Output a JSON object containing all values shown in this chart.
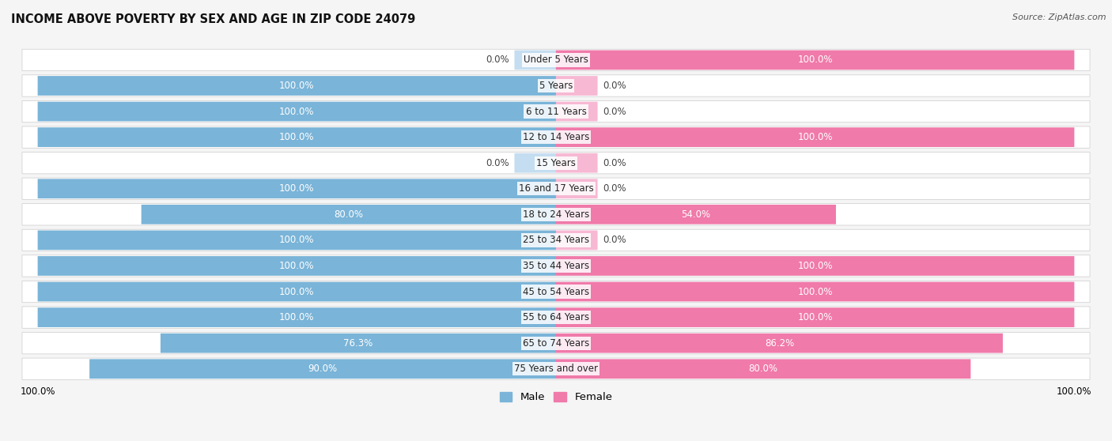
{
  "title": "INCOME ABOVE POVERTY BY SEX AND AGE IN ZIP CODE 24079",
  "source": "Source: ZipAtlas.com",
  "categories": [
    "Under 5 Years",
    "5 Years",
    "6 to 11 Years",
    "12 to 14 Years",
    "15 Years",
    "16 and 17 Years",
    "18 to 24 Years",
    "25 to 34 Years",
    "35 to 44 Years",
    "45 to 54 Years",
    "55 to 64 Years",
    "65 to 74 Years",
    "75 Years and over"
  ],
  "male": [
    0.0,
    100.0,
    100.0,
    100.0,
    0.0,
    100.0,
    80.0,
    100.0,
    100.0,
    100.0,
    100.0,
    76.3,
    90.0
  ],
  "female": [
    100.0,
    0.0,
    0.0,
    100.0,
    0.0,
    0.0,
    54.0,
    0.0,
    100.0,
    100.0,
    100.0,
    86.2,
    80.0
  ],
  "male_color": "#7ab4d8",
  "female_color": "#f07aaa",
  "male_color_light": "#c5ddf0",
  "female_color_light": "#f7b8d3",
  "male_label": "Male",
  "female_label": "Female",
  "row_bg": "#ffffff",
  "row_border": "#cccccc",
  "fig_bg": "#f5f5f5",
  "title_fontsize": 10.5,
  "source_fontsize": 8,
  "label_fontsize": 8.5,
  "cat_fontsize": 8.5
}
